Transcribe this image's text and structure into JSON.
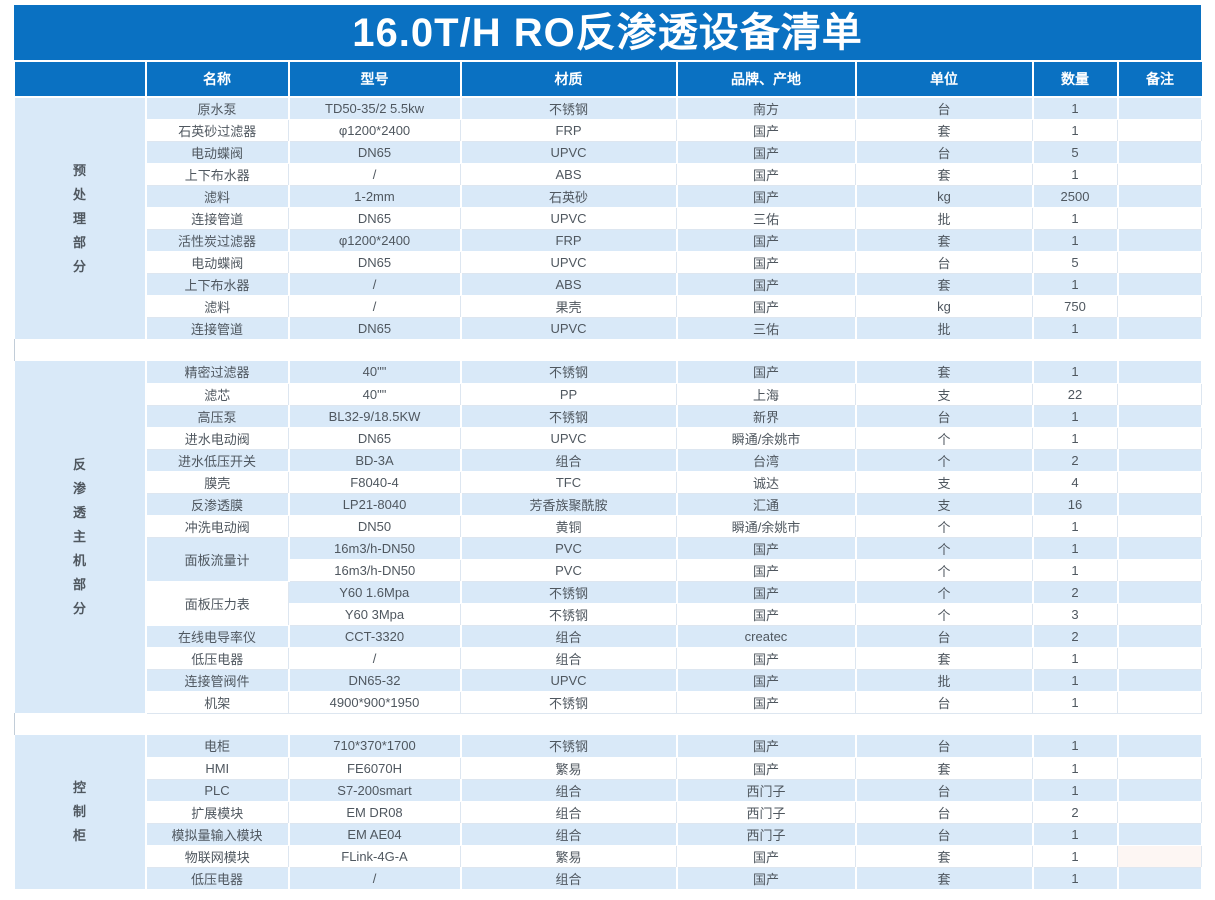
{
  "title": "16.0T/H RO反渗透设备清单",
  "columns": [
    "名称",
    "型号",
    "材质",
    "品牌、产地",
    "单位",
    "数量",
    "备注"
  ],
  "colors": {
    "header_blue": "#0A71C2",
    "row_light_blue": "#D9E9F8",
    "remark_pink": "#FDF6F3",
    "grid_line": "#DDE6F0",
    "title_text": "#FFFFFF",
    "cell_text": "#4F575F"
  },
  "sections": [
    {
      "label": "预处理部分",
      "rows": [
        {
          "name": "原水泵",
          "model": "TD50-35/2  5.5kw",
          "material": "不锈钢",
          "brand": "南方",
          "unit": "台",
          "qty": "1",
          "remark": ""
        },
        {
          "name": "石英砂过滤器",
          "model": "φ1200*2400",
          "material": "FRP",
          "brand": "国产",
          "unit": "套",
          "qty": "1",
          "remark": ""
        },
        {
          "name": "电动蝶阀",
          "model": "DN65",
          "material": "UPVC",
          "brand": "国产",
          "unit": "台",
          "qty": "5",
          "remark": ""
        },
        {
          "name": "上下布水器",
          "model": "/",
          "material": "ABS",
          "brand": "国产",
          "unit": "套",
          "qty": "1",
          "remark": ""
        },
        {
          "name": "滤料",
          "model": "1-2mm",
          "material": "石英砂",
          "brand": "国产",
          "unit": "kg",
          "qty": "2500",
          "remark": ""
        },
        {
          "name": "连接管道",
          "model": "DN65",
          "material": "UPVC",
          "brand": "三佑",
          "unit": "批",
          "qty": "1",
          "remark": ""
        },
        {
          "name": "活性炭过滤器",
          "model": "φ1200*2400",
          "material": "FRP",
          "brand": "国产",
          "unit": "套",
          "qty": "1",
          "remark": ""
        },
        {
          "name": "电动蝶阀",
          "model": "DN65",
          "material": "UPVC",
          "brand": "国产",
          "unit": "台",
          "qty": "5",
          "remark": ""
        },
        {
          "name": "上下布水器",
          "model": "/",
          "material": "ABS",
          "brand": "国产",
          "unit": "套",
          "qty": "1",
          "remark": ""
        },
        {
          "name": "滤料",
          "model": "/",
          "material": "果壳",
          "brand": "国产",
          "unit": "kg",
          "qty": "750",
          "remark": ""
        },
        {
          "name": "连接管道",
          "model": "DN65",
          "material": "UPVC",
          "brand": "三佑",
          "unit": "批",
          "qty": "1",
          "remark": ""
        }
      ]
    },
    {
      "label": "反渗透主机部分",
      "rows": [
        {
          "name": "精密过滤器",
          "model": "40\"\"",
          "material": "不锈钢",
          "brand": "国产",
          "unit": "套",
          "qty": "1",
          "remark": ""
        },
        {
          "name": "滤芯",
          "model": "40\"\"",
          "material": "PP",
          "brand": "上海",
          "unit": "支",
          "qty": "22",
          "remark": ""
        },
        {
          "name": "高压泵",
          "model": "BL32-9/18.5KW",
          "material": "不锈钢",
          "brand": "新界",
          "unit": "台",
          "qty": "1",
          "remark": ""
        },
        {
          "name": "进水电动阀",
          "model": "DN65",
          "material": "UPVC",
          "brand": "瞬通/余姚市",
          "unit": "个",
          "qty": "1",
          "remark": ""
        },
        {
          "name": "进水低压开关",
          "model": "BD-3A",
          "material": "组合",
          "brand": "台湾",
          "unit": "个",
          "qty": "2",
          "remark": ""
        },
        {
          "name": "膜壳",
          "model": "F8040-4",
          "material": "TFC",
          "brand": "诚达",
          "unit": "支",
          "qty": "4",
          "remark": ""
        },
        {
          "name": "反渗透膜",
          "model": "LP21-8040",
          "material": "芳香族聚酰胺",
          "brand": "汇通",
          "unit": "支",
          "qty": "16",
          "remark": ""
        },
        {
          "name": "冲洗电动阀",
          "model": "DN50",
          "material": "黄铜",
          "brand": "瞬通/余姚市",
          "unit": "个",
          "qty": "1",
          "remark": ""
        },
        {
          "name": "面板流量计",
          "name_span": 2,
          "model": "16m3/h-DN50",
          "material": "PVC",
          "brand": "国产",
          "unit": "个",
          "qty": "1",
          "remark": ""
        },
        {
          "sub": true,
          "model": "16m3/h-DN50",
          "material": "PVC",
          "brand": "国产",
          "unit": "个",
          "qty": "1",
          "remark": ""
        },
        {
          "name": "面板压力表",
          "name_span": 2,
          "name_shade": "white",
          "model": "Y60 1.6Mpa",
          "material": "不锈钢",
          "brand": "国产",
          "unit": "个",
          "qty": "2",
          "remark": ""
        },
        {
          "sub": true,
          "model": "Y60 3Mpa",
          "material": "不锈钢",
          "brand": "国产",
          "unit": "个",
          "qty": "3",
          "remark": ""
        },
        {
          "name": "在线电导率仪",
          "model": "CCT-3320",
          "material": "组合",
          "brand": "createc",
          "unit": "台",
          "qty": "2",
          "remark": ""
        },
        {
          "name": "低压电器",
          "model": "/",
          "material": "组合",
          "brand": "国产",
          "unit": "套",
          "qty": "1",
          "remark": ""
        },
        {
          "name": "连接管阀件",
          "model": "DN65-32",
          "material": "UPVC",
          "brand": "国产",
          "unit": "批",
          "qty": "1",
          "remark": ""
        },
        {
          "name": "机架",
          "model": "4900*900*1950",
          "material": "不锈钢",
          "brand": "国产",
          "unit": "台",
          "qty": "1",
          "remark": ""
        }
      ]
    },
    {
      "label": "控制柜",
      "rows": [
        {
          "name": "电柜",
          "model": "710*370*1700",
          "material": "不锈钢",
          "brand": "国产",
          "unit": "台",
          "qty": "1",
          "remark": ""
        },
        {
          "name": "HMI",
          "model": "FE6070H",
          "material": "繁易",
          "brand": "国产",
          "unit": "套",
          "qty": "1",
          "remark": ""
        },
        {
          "name": "PLC",
          "model": "S7-200smart",
          "material": "组合",
          "brand": "西门子",
          "unit": "台",
          "qty": "1",
          "remark": ""
        },
        {
          "name": "扩展模块",
          "model": "EM DR08",
          "material": "组合",
          "brand": "西门子",
          "unit": "台",
          "qty": "2",
          "remark": ""
        },
        {
          "name": "模拟量输入模块",
          "model": "EM AE04",
          "material": "组合",
          "brand": "西门子",
          "unit": "台",
          "qty": "1",
          "remark": ""
        },
        {
          "name": "物联网模块",
          "model": "FLink-4G-A",
          "material": "繁易",
          "brand": "国产",
          "unit": "套",
          "qty": "1",
          "remark": "",
          "remark_bg": "#FDF6F3"
        },
        {
          "name": "低压电器",
          "model": "/",
          "material": "组合",
          "brand": "国产",
          "unit": "套",
          "qty": "1",
          "remark": ""
        }
      ]
    }
  ]
}
